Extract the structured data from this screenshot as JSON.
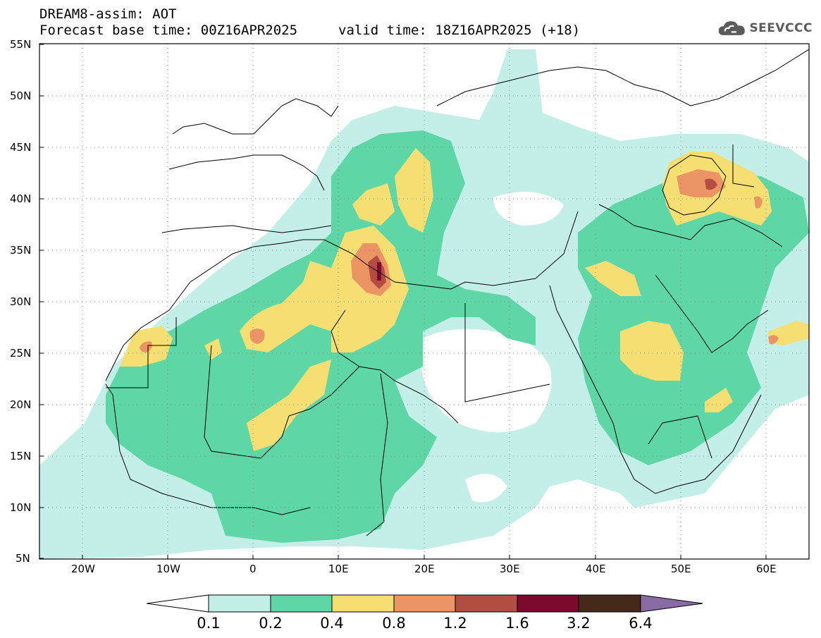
{
  "header": {
    "line1": "DREAM8-assim: AOT",
    "line2": "Forecast base time: 00Z16APR2025",
    "line2b": "valid time: 18Z16APR2025 (+18)"
  },
  "logo": {
    "text": "SEEVCCC",
    "icon": "cloud-icon",
    "color": "#5b5b5b"
  },
  "map": {
    "lat_labels": [
      "55N",
      "50N",
      "45N",
      "40N",
      "35N",
      "30N",
      "25N",
      "20N",
      "15N",
      "10N",
      "5N"
    ],
    "lon_labels": [
      "20W",
      "10W",
      "0",
      "10E",
      "20E",
      "30E",
      "40E",
      "50E",
      "60E"
    ],
    "lat_values": [
      55,
      50,
      45,
      40,
      35,
      30,
      25,
      20,
      15,
      10,
      5
    ],
    "lon_values": [
      -20,
      -10,
      0,
      10,
      20,
      30,
      40,
      50,
      60
    ],
    "extent": {
      "lon_min": -25,
      "lon_max": 65,
      "lat_min": 5,
      "lat_max": 55
    },
    "gridlines": "dotted"
  },
  "colorbar": {
    "levels": [
      "0.1",
      "0.2",
      "0.4",
      "0.8",
      "1.2",
      "1.6",
      "3.2",
      "6.4"
    ],
    "colors": [
      "#c4efe8",
      "#5fd6a6",
      "#f5df72",
      "#eb9565",
      "#b24e41",
      "#7a0b2c",
      "#45291a",
      "#8a6aa5"
    ]
  },
  "colors": {
    "c1": "#c4efe8",
    "c2": "#5fd6a6",
    "c3": "#f5df72",
    "c4": "#eb9565",
    "c5": "#b24e41",
    "c6": "#7a0b2c",
    "borders": "#000000"
  }
}
